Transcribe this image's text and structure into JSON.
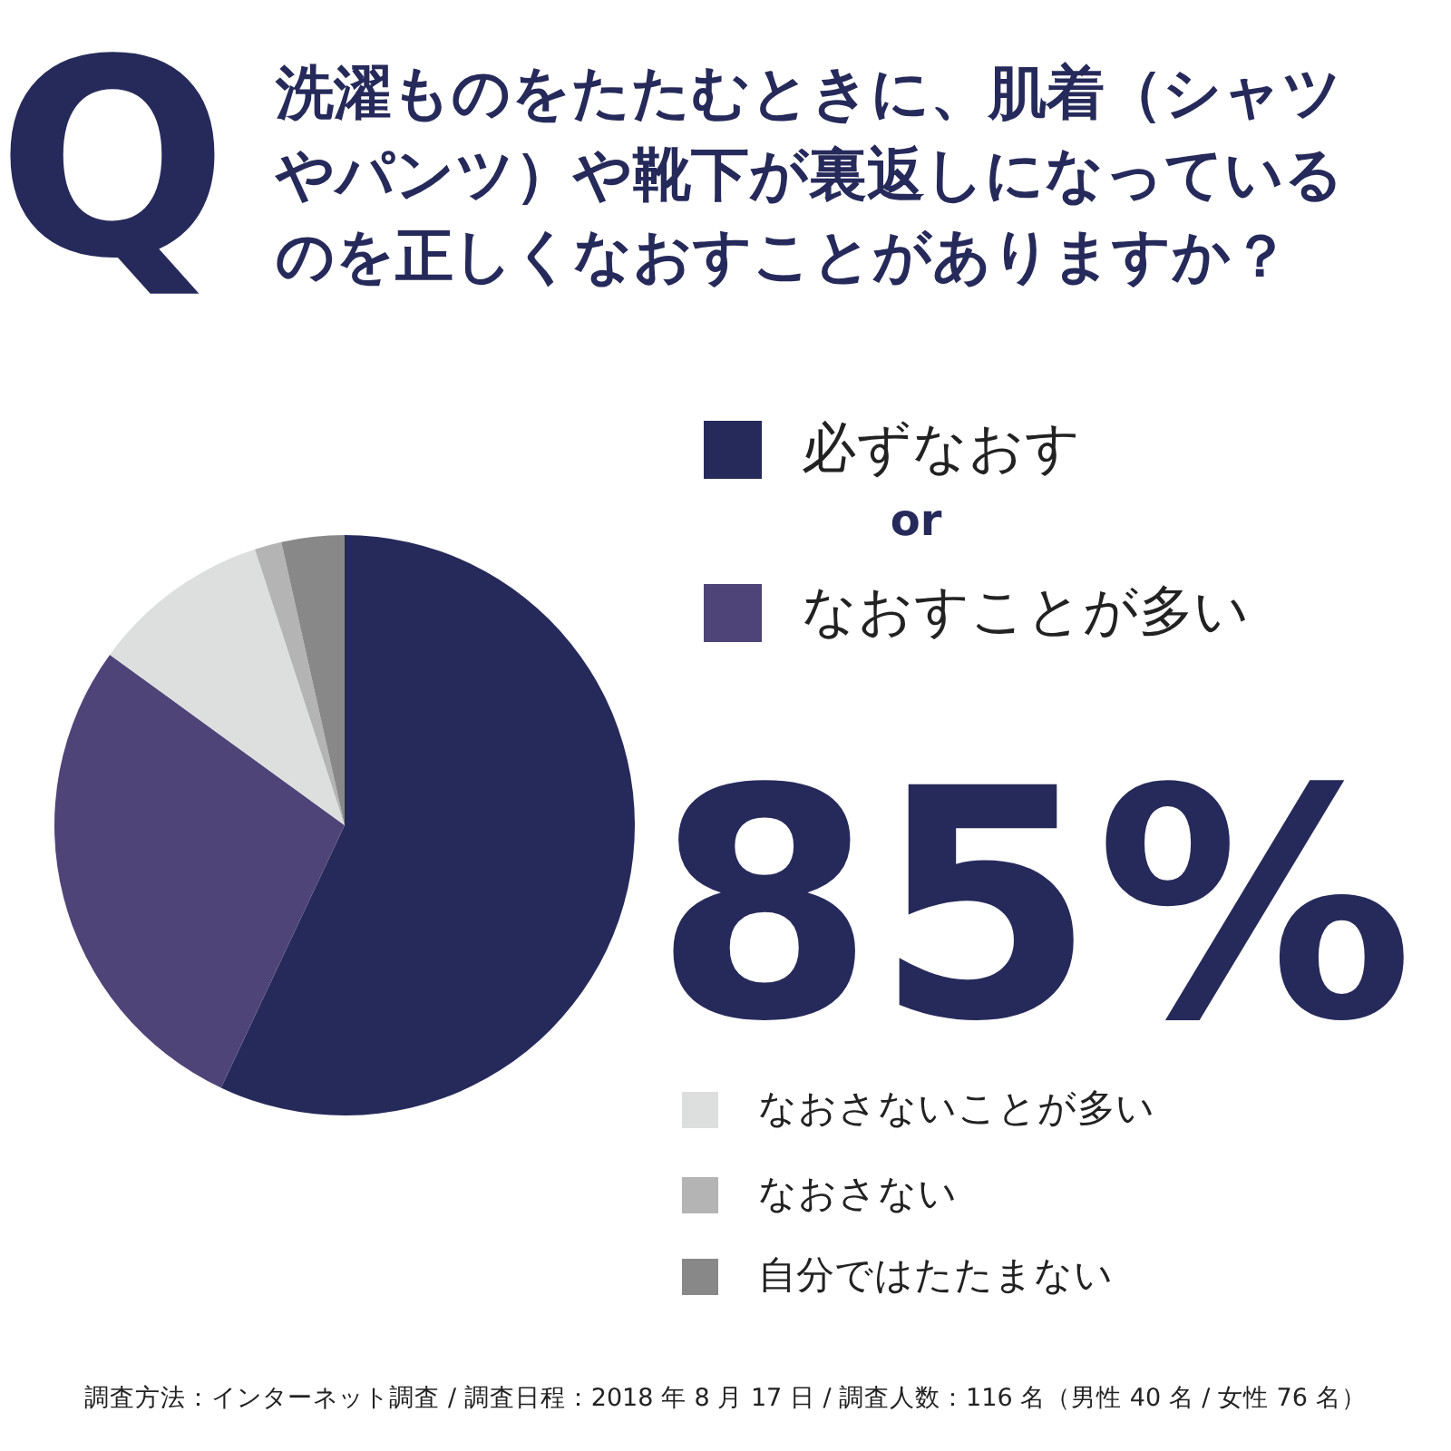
{
  "chart_data": {
    "type": "pie",
    "title": "洗濯ものをたたむときに、肌着（シャツやパンツ）や靴下が裏返しになっているのを正しくなおすことがありますか？",
    "categories": [
      "必ずなおす",
      "なおすことが多い",
      "なおさないことが多い",
      "なおさない",
      "自分ではたたまない"
    ],
    "values": [
      57,
      28,
      10,
      1.5,
      3.5
    ],
    "colors": [
      "#262a5a",
      "#4e4478",
      "#dcdfde",
      "#b4b4b4",
      "#888888"
    ],
    "legend": "right",
    "annotations": [
      "Q",
      "or",
      "85%",
      "調査方法：インターネット調査 / 調査日程：2018 年 8 月 17 日 / 調査人数：116 名（男性 40 名 / 女性 76 名）"
    ]
  }
}
